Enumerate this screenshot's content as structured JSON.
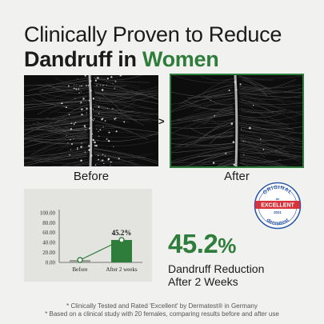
{
  "headline": {
    "line1": "Clinically Proven to Reduce",
    "line2_main": "Dandruff in ",
    "line2_accent": "Women"
  },
  "comparison": {
    "arrow": ">",
    "before_caption": "Before",
    "after_caption": "After"
  },
  "badge": {
    "top_text": "ORIGINAL",
    "ribbon_top": "de",
    "ribbon": "EXCELLENT",
    "year": "2021",
    "bottom_text": "dermatest"
  },
  "result": {
    "value": "45.2",
    "unit": "%",
    "line1": "Dandruff Reduction",
    "line2": "After 2 Weeks"
  },
  "footnotes": [
    "* Clinically Tested and Rated 'Excellent' by Dermatest® in Germany",
    "* Based on a clinical study with 20 females, comparing results before and after use"
  ],
  "colors": {
    "accent": "#2f7d3b",
    "badge_blue": "#2a57a8",
    "badge_red": "#d8323a"
  },
  "chart_data": {
    "type": "bar",
    "categories": [
      "Before",
      "After 2 weeks"
    ],
    "values": [
      0,
      45.2
    ],
    "data_labels": [
      "",
      "45.2%"
    ],
    "yticks": [
      "100.00",
      "80.00",
      "60.00",
      "40.00",
      "20.00",
      "0.00"
    ],
    "ylim": [
      0,
      100
    ],
    "grid": false,
    "overlay_line": true
  }
}
